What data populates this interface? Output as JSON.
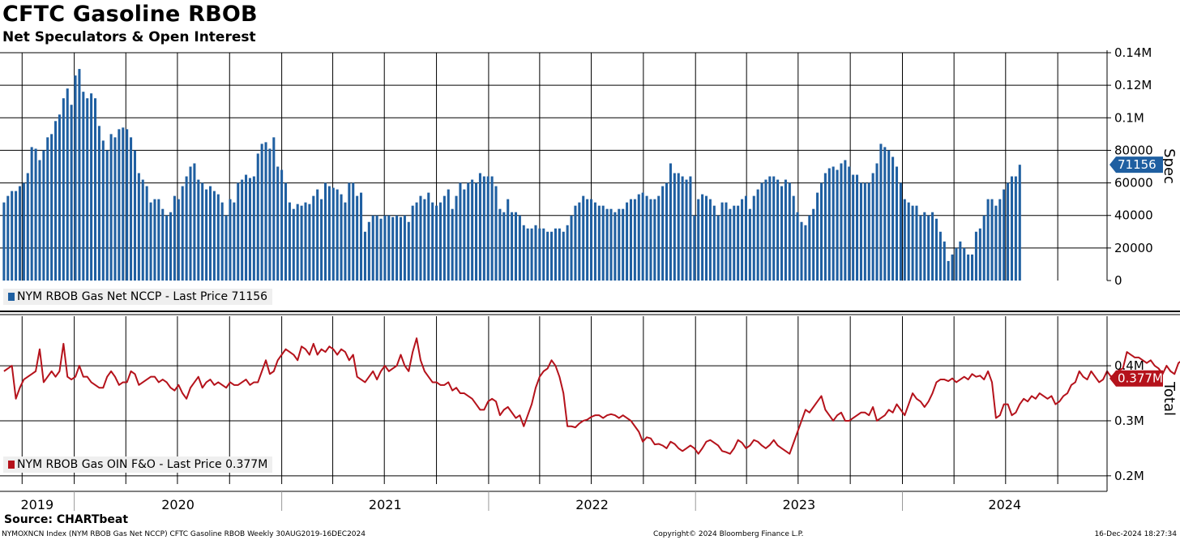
{
  "header": {
    "title": "CFTC Gasoline RBOB",
    "subtitle": "Net Speculators & Open Interest"
  },
  "footer": {
    "source": "Source: CHARTbeat",
    "left": "NYMOXNCN Index (NYM RBOB Gas Net NCCP) CFTC Gasoline RBOB  Weekly 30AUG2019-16DEC2024",
    "center": "Copyright© 2024 Bloomberg Finance L.P.",
    "right": "16-Dec-2024 18:27:34"
  },
  "colors": {
    "spec": "#1f5fa1",
    "total": "#b5121b"
  },
  "chart_data": [
    {
      "type": "bar",
      "panel": "top",
      "axis_label": "Spec",
      "ylim": [
        0,
        140000
      ],
      "y_ticks": [
        "0",
        "20000",
        "40000",
        "60000",
        "80000",
        "0.1M",
        "0.12M",
        "0.14M"
      ],
      "last_value_label": "71156",
      "legend": "NYM RBOB Gas Net NCCP - Last Price 71156",
      "series": [
        {
          "name": "NYM RBOB Gas Net NCCP",
          "x_start": "2019-08-30",
          "step_days": 7,
          "values": [
            48000,
            52000,
            55000,
            55000,
            58000,
            60000,
            66000,
            82000,
            81000,
            74000,
            80000,
            88000,
            90000,
            98000,
            102000,
            112000,
            118000,
            108000,
            126000,
            130000,
            116000,
            112000,
            115000,
            112000,
            95000,
            86000,
            80000,
            90000,
            88000,
            93000,
            94000,
            93000,
            88000,
            80000,
            66000,
            62000,
            58000,
            48000,
            50000,
            50000,
            44000,
            40000,
            42000,
            52000,
            50000,
            58000,
            64000,
            70000,
            72000,
            62000,
            60000,
            56000,
            58000,
            55000,
            53000,
            48000,
            40000,
            50000,
            48000,
            60000,
            62000,
            65000,
            63000,
            64000,
            78000,
            84000,
            85000,
            81000,
            88000,
            70000,
            68000,
            60000,
            48000,
            44000,
            47000,
            46000,
            48000,
            47000,
            52000,
            56000,
            50000,
            60000,
            58000,
            57000,
            56000,
            53000,
            48000,
            60000,
            60000,
            52000,
            54000,
            30000,
            36000,
            40000,
            40000,
            38000,
            40000,
            40000,
            39000,
            40000,
            39000,
            40000,
            36000,
            46000,
            48000,
            52000,
            50000,
            54000,
            48000,
            46000,
            48000,
            52000,
            56000,
            44000,
            52000,
            60000,
            56000,
            60000,
            62000,
            60000,
            66000,
            64000,
            64000,
            64000,
            58000,
            44000,
            42000,
            50000,
            42000,
            42000,
            40000,
            34000,
            32000,
            32000,
            34000,
            32000,
            32000,
            30000,
            30000,
            32000,
            32000,
            30000,
            34000,
            40000,
            46000,
            48000,
            52000,
            50000,
            50000,
            48000,
            46000,
            46000,
            44000,
            44000,
            42000,
            44000,
            44000,
            48000,
            50000,
            50000,
            53000,
            54000,
            52000,
            50000,
            50000,
            52000,
            58000,
            60000,
            72000,
            66000,
            66000,
            64000,
            62000,
            64000,
            40000,
            50000,
            53000,
            52000,
            50000,
            46000,
            40000,
            48000,
            48000,
            44000,
            46000,
            46000,
            50000,
            52000,
            44000,
            52000,
            56000,
            60000,
            62000,
            64000,
            64000,
            62000,
            58000,
            62000,
            60000,
            52000,
            42000,
            36000,
            34000,
            40000,
            44000,
            54000,
            60000,
            66000,
            69000,
            70000,
            68000,
            72000,
            74000,
            70000,
            65000,
            65000,
            60000,
            60000,
            60000,
            66000,
            72000,
            84000,
            82000,
            80000,
            76000,
            70000,
            60000,
            50000,
            48000,
            46000,
            46000,
            40000,
            42000,
            40000,
            42000,
            38000,
            30000,
            24000,
            12000,
            16000,
            20000,
            24000,
            20000,
            16000,
            16000,
            30000,
            32000,
            40000,
            50000,
            50000,
            46000,
            50000,
            56000,
            60000,
            64000,
            64000,
            71156
          ]
        }
      ]
    },
    {
      "type": "line",
      "panel": "bottom",
      "axis_label": "Total",
      "ylim": [
        0.185,
        0.49
      ],
      "y_ticks": [
        "0.2M",
        "0.3M",
        "0.4M"
      ],
      "last_value_label": "0.377M",
      "legend": "NYM RBOB Gas OIN F&O - Last Price 0.377M",
      "x_labels": [
        "2019",
        "2020",
        "2021",
        "2022",
        "2023",
        "2024"
      ],
      "series": [
        {
          "name": "NYM RBOB Gas OIN F&O",
          "x_start": "2019-08-30",
          "step_days": 7,
          "values": [
            0.39,
            0.395,
            0.4,
            0.34,
            0.36,
            0.375,
            0.38,
            0.385,
            0.39,
            0.43,
            0.37,
            0.38,
            0.39,
            0.38,
            0.39,
            0.44,
            0.38,
            0.375,
            0.38,
            0.4,
            0.38,
            0.38,
            0.37,
            0.365,
            0.36,
            0.36,
            0.38,
            0.39,
            0.38,
            0.365,
            0.37,
            0.37,
            0.39,
            0.385,
            0.365,
            0.37,
            0.375,
            0.38,
            0.38,
            0.37,
            0.375,
            0.37,
            0.36,
            0.355,
            0.365,
            0.35,
            0.34,
            0.36,
            0.37,
            0.38,
            0.36,
            0.37,
            0.375,
            0.365,
            0.37,
            0.365,
            0.36,
            0.37,
            0.365,
            0.365,
            0.37,
            0.375,
            0.365,
            0.37,
            0.37,
            0.39,
            0.41,
            0.385,
            0.39,
            0.41,
            0.42,
            0.43,
            0.425,
            0.42,
            0.41,
            0.435,
            0.43,
            0.42,
            0.44,
            0.42,
            0.43,
            0.425,
            0.435,
            0.43,
            0.42,
            0.43,
            0.425,
            0.41,
            0.42,
            0.38,
            0.375,
            0.37,
            0.38,
            0.39,
            0.375,
            0.39,
            0.4,
            0.39,
            0.395,
            0.4,
            0.42,
            0.4,
            0.39,
            0.425,
            0.45,
            0.41,
            0.39,
            0.38,
            0.37,
            0.37,
            0.365,
            0.365,
            0.37,
            0.355,
            0.36,
            0.35,
            0.35,
            0.345,
            0.34,
            0.33,
            0.32,
            0.32,
            0.335,
            0.34,
            0.335,
            0.31,
            0.32,
            0.325,
            0.315,
            0.305,
            0.31,
            0.29,
            0.31,
            0.33,
            0.36,
            0.38,
            0.39,
            0.395,
            0.41,
            0.4,
            0.38,
            0.35,
            0.29,
            0.29,
            0.288,
            0.295,
            0.3,
            0.302,
            0.307,
            0.31,
            0.31,
            0.305,
            0.31,
            0.312,
            0.31,
            0.305,
            0.31,
            0.305,
            0.3,
            0.29,
            0.28,
            0.262,
            0.27,
            0.268,
            0.257,
            0.258,
            0.255,
            0.25,
            0.262,
            0.258,
            0.25,
            0.245,
            0.25,
            0.255,
            0.25,
            0.24,
            0.25,
            0.262,
            0.265,
            0.26,
            0.255,
            0.245,
            0.243,
            0.24,
            0.25,
            0.265,
            0.26,
            0.25,
            0.255,
            0.265,
            0.262,
            0.255,
            0.25,
            0.256,
            0.265,
            0.255,
            0.25,
            0.245,
            0.24,
            0.26,
            0.28,
            0.3,
            0.32,
            0.315,
            0.325,
            0.335,
            0.345,
            0.32,
            0.31,
            0.3,
            0.31,
            0.315,
            0.3,
            0.3,
            0.305,
            0.31,
            0.315,
            0.315,
            0.31,
            0.325,
            0.3,
            0.305,
            0.31,
            0.32,
            0.315,
            0.33,
            0.32,
            0.31,
            0.33,
            0.35,
            0.34,
            0.335,
            0.325,
            0.335,
            0.35,
            0.37,
            0.375,
            0.375,
            0.372,
            0.377,
            0.37,
            0.375,
            0.38,
            0.375,
            0.385,
            0.38,
            0.382,
            0.375,
            0.39,
            0.37,
            0.305,
            0.31,
            0.33,
            0.33,
            0.31,
            0.315,
            0.33,
            0.34,
            0.335,
            0.345,
            0.34,
            0.35,
            0.345,
            0.34,
            0.345,
            0.33,
            0.335,
            0.345,
            0.35,
            0.365,
            0.37,
            0.39,
            0.38,
            0.375,
            0.39,
            0.38,
            0.37,
            0.375,
            0.39,
            0.38,
            0.385,
            0.392,
            0.395,
            0.425,
            0.42,
            0.415,
            0.415,
            0.41,
            0.405,
            0.41,
            0.4,
            0.395,
            0.385,
            0.4,
            0.39,
            0.385,
            0.405,
            0.41,
            0.4,
            0.4,
            0.38,
            0.39,
            0.38,
            0.385,
            0.37,
            0.35,
            0.34,
            0.345,
            0.335,
            0.345,
            0.345,
            0.325,
            0.322,
            0.34,
            0.36,
            0.365,
            0.365,
            0.37,
            0.38,
            0.375,
            0.355,
            0.35,
            0.377
          ]
        }
      ]
    }
  ]
}
